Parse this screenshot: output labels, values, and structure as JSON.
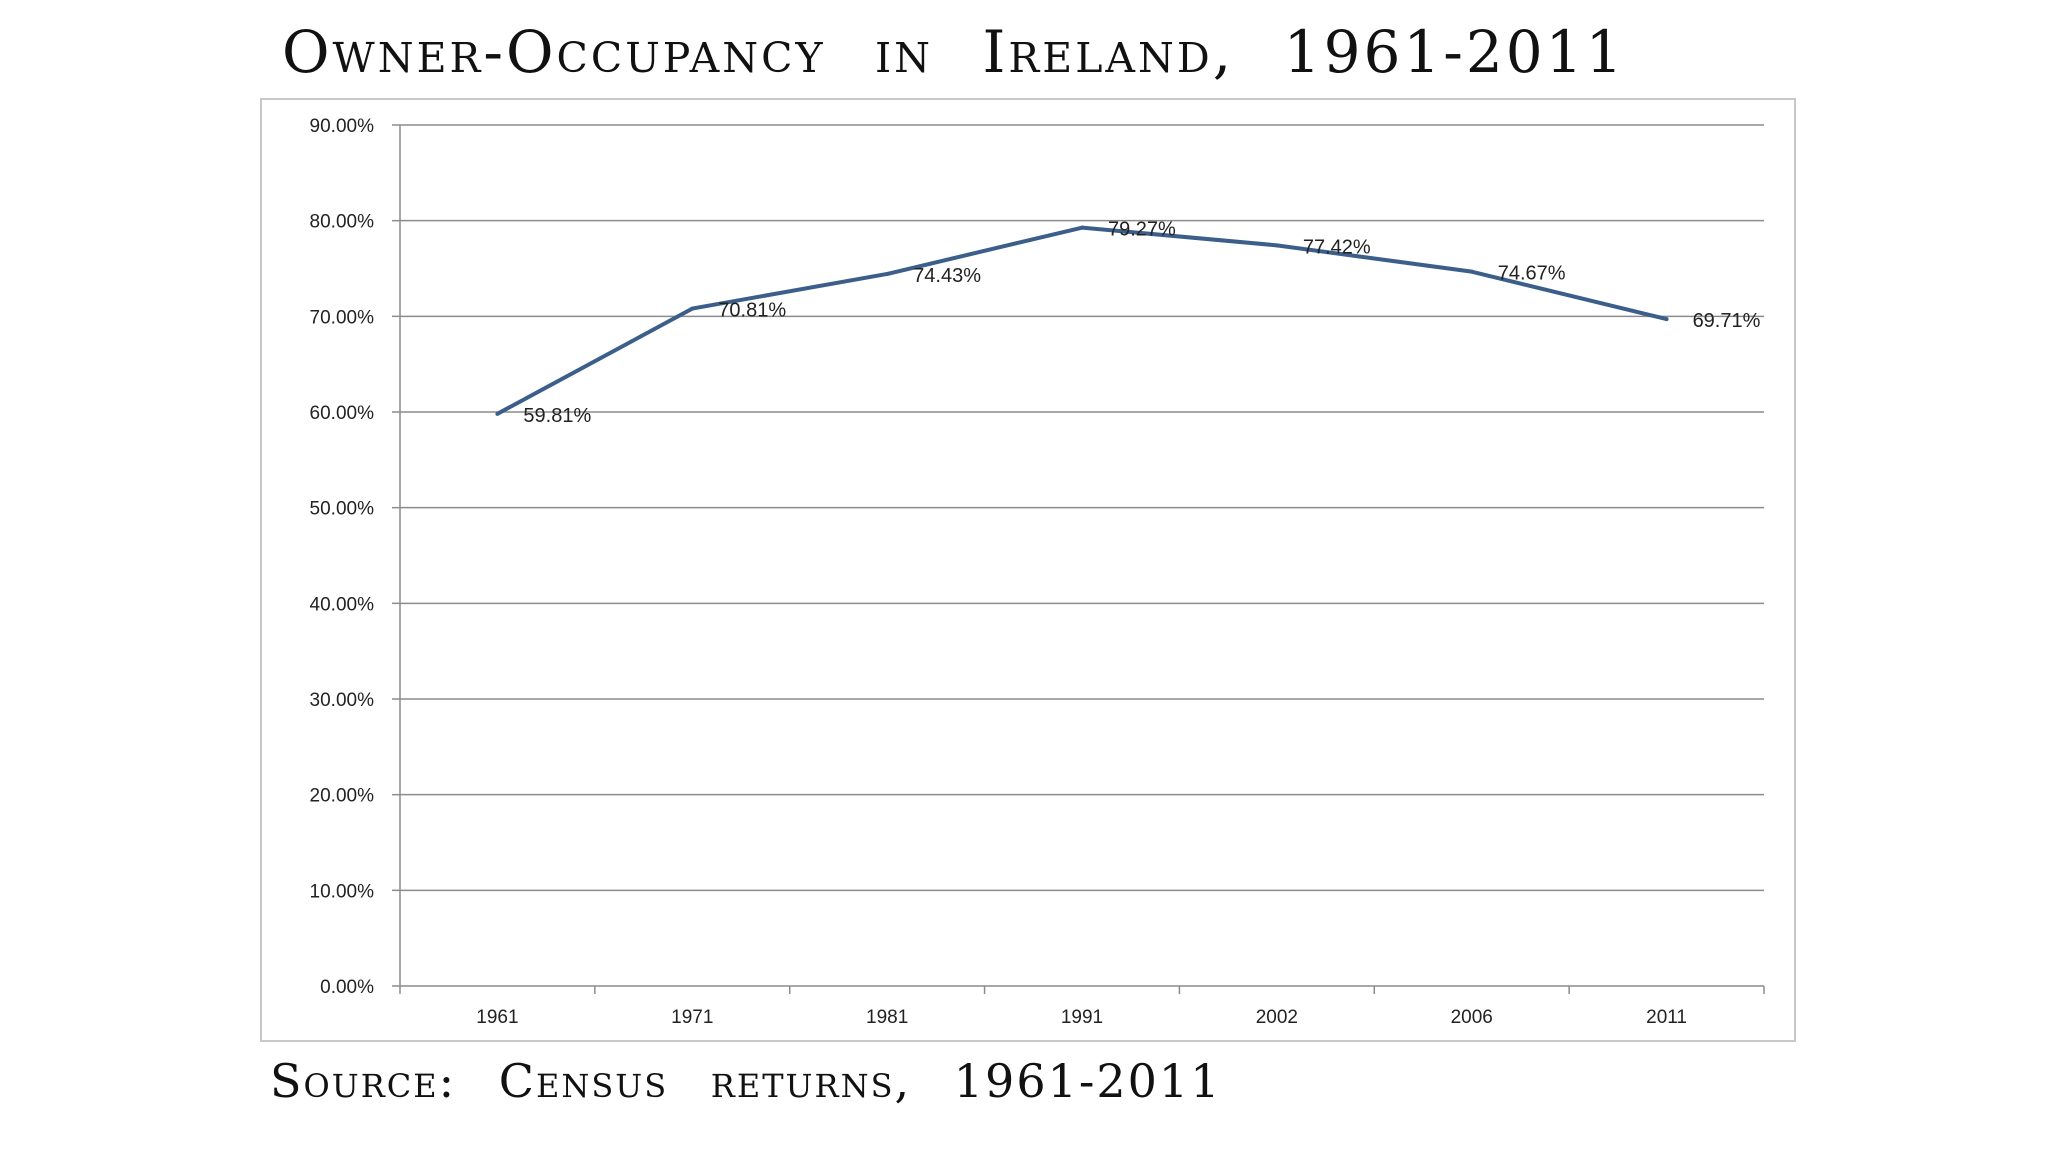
{
  "page": {
    "title": "Owner-Occupancy in Ireland, 1961-2011",
    "source": "Source: Census returns, 1961-2011"
  },
  "chart_data": {
    "type": "line",
    "title": "Owner-Occupancy in Ireland, 1961-2011",
    "xlabel": "",
    "ylabel": "",
    "categories": [
      "1961",
      "1971",
      "1981",
      "1991",
      "2002",
      "2006",
      "2011"
    ],
    "series": [
      {
        "name": "Owner-Occupancy",
        "values": [
          59.81,
          70.81,
          74.43,
          79.27,
          77.42,
          74.67,
          69.71
        ],
        "labels": [
          "59.81%",
          "70.81%",
          "74.43%",
          "79.27%",
          "77.42%",
          "74.67%",
          "69.71%"
        ],
        "color": "#3b5f8a"
      }
    ],
    "ylim": [
      0,
      90
    ],
    "yticks": [
      0,
      10,
      20,
      30,
      40,
      50,
      60,
      70,
      80,
      90
    ],
    "ytick_labels": [
      "0.00%",
      "10.00%",
      "20.00%",
      "30.00%",
      "40.00%",
      "50.00%",
      "60.00%",
      "70.00%",
      "80.00%",
      "90.00%"
    ],
    "grid": true,
    "legend": "none"
  }
}
